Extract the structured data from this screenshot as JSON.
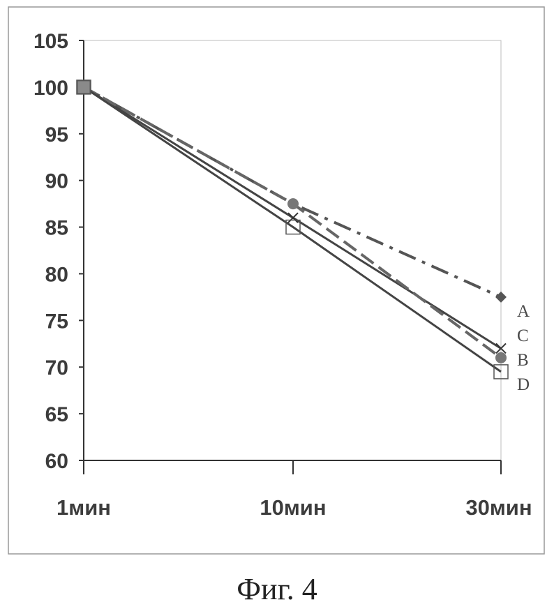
{
  "chart_data": {
    "type": "line",
    "categories": [
      "1мин",
      "10мин",
      "30мин"
    ],
    "ylim": [
      60,
      105
    ],
    "yticks": [
      60,
      65,
      70,
      75,
      80,
      85,
      90,
      95,
      100,
      105
    ],
    "grid": false,
    "legend": "labels at right end of lines",
    "series": [
      {
        "name": "A",
        "values": [
          100,
          87.5,
          77.5
        ],
        "marker": "diamond",
        "style": "dash-dot",
        "color": "#555555"
      },
      {
        "name": "C",
        "values": [
          100,
          86.0,
          72.0
        ],
        "marker": "cross",
        "style": "solid",
        "color": "#444444"
      },
      {
        "name": "B",
        "values": [
          100,
          87.5,
          71.0
        ],
        "marker": "circle",
        "style": "dashed",
        "color": "#666666"
      },
      {
        "name": "D",
        "values": [
          100,
          85.0,
          69.5
        ],
        "marker": "open-square",
        "style": "solid",
        "color": "#444444"
      }
    ]
  },
  "caption": "Фиг. 4"
}
